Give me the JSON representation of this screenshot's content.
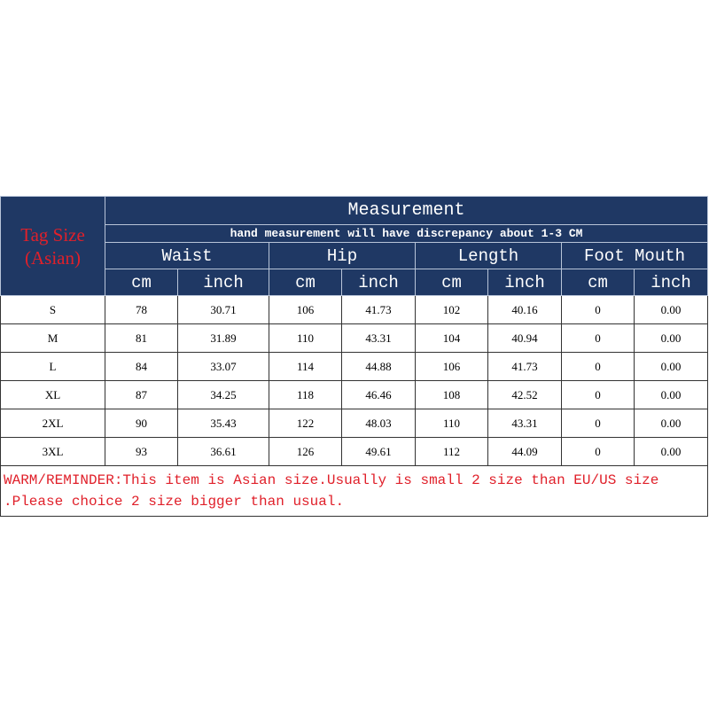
{
  "header": {
    "tag_size": "Tag Size (Asian)",
    "title": "Measurement",
    "note": "hand measurement will have discrepancy about 1-3 CM",
    "groups": [
      "Waist",
      "Hip",
      "Length",
      "Foot Mouth"
    ],
    "units": [
      "cm",
      "inch",
      "cm",
      "inch",
      "cm",
      "inch",
      "cm",
      "inch"
    ]
  },
  "table": {
    "rows": [
      [
        "S",
        "78",
        "30.71",
        "106",
        "41.73",
        "102",
        "40.16",
        "0",
        "0.00"
      ],
      [
        "M",
        "81",
        "31.89",
        "110",
        "43.31",
        "104",
        "40.94",
        "0",
        "0.00"
      ],
      [
        "L",
        "84",
        "33.07",
        "114",
        "44.88",
        "106",
        "41.73",
        "0",
        "0.00"
      ],
      [
        "XL",
        "87",
        "34.25",
        "118",
        "46.46",
        "108",
        "42.52",
        "0",
        "0.00"
      ],
      [
        "2XL",
        "90",
        "35.43",
        "122",
        "48.03",
        "110",
        "43.31",
        "0",
        "0.00"
      ],
      [
        "3XL",
        "93",
        "36.61",
        "126",
        "49.61",
        "112",
        "44.09",
        "0",
        "0.00"
      ]
    ]
  },
  "reminder": {
    "lines": [
      "WARM/REMINDER:This item is Asian size.Usually is small 2 size than EU/US size",
      ".Please choice 2 size bigger than usual."
    ]
  }
}
